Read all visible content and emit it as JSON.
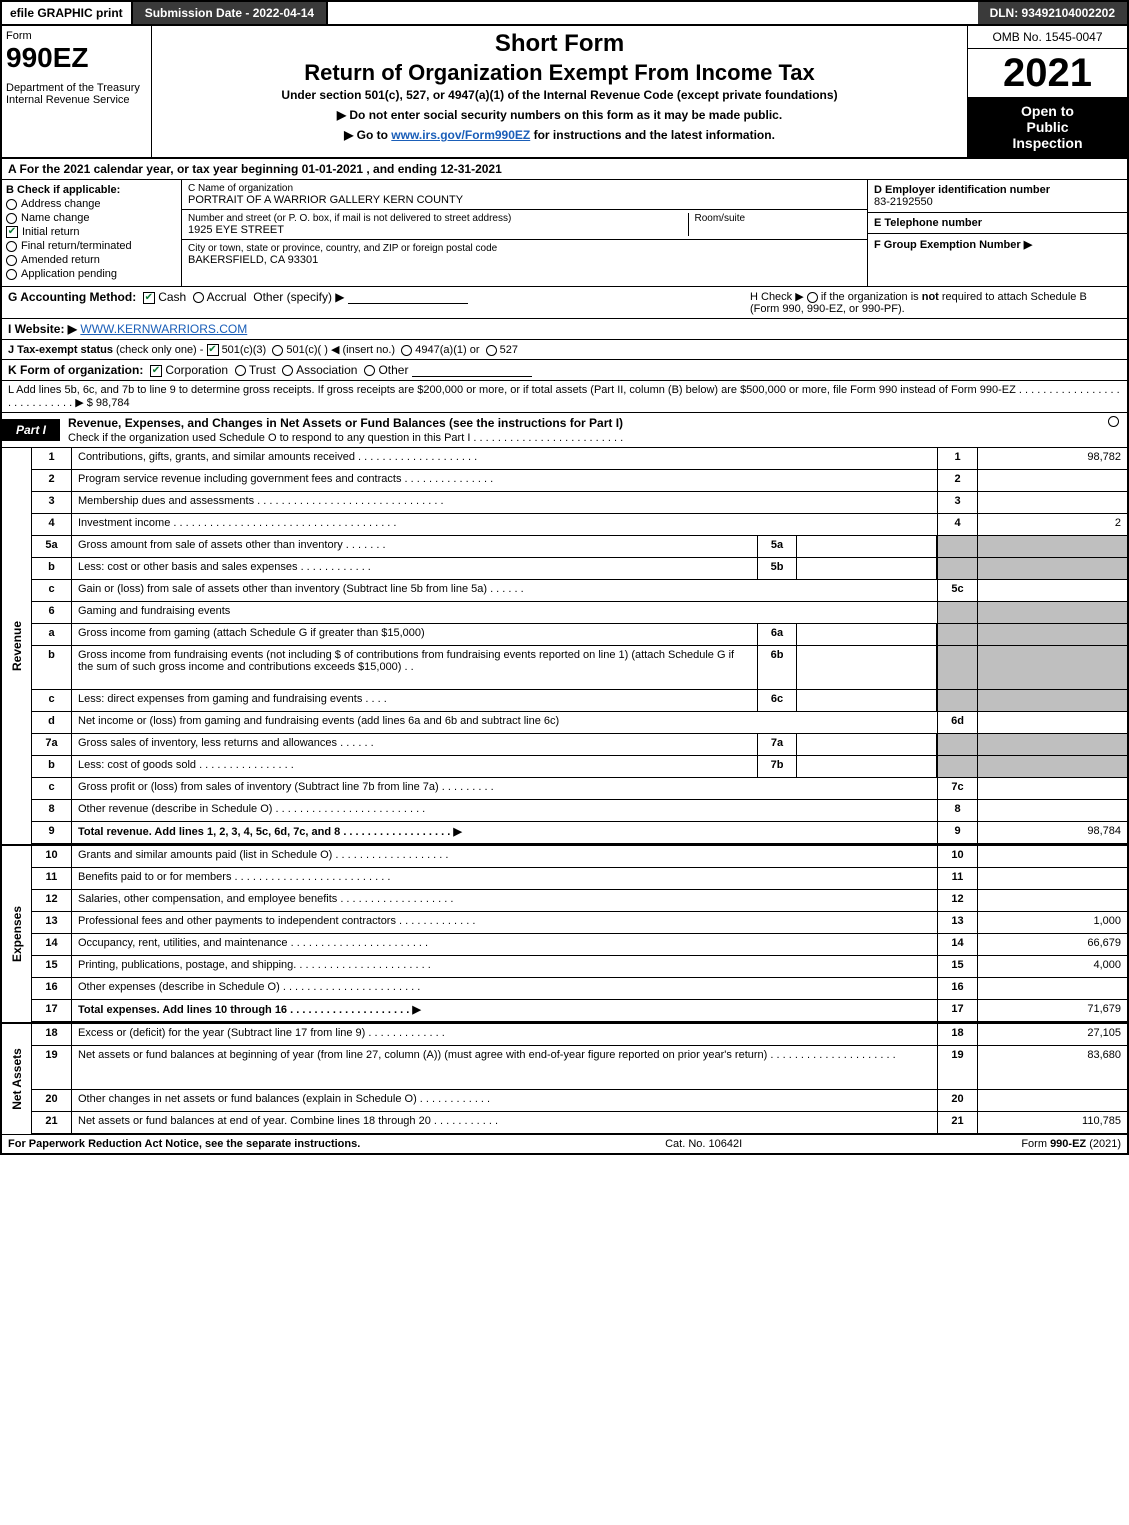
{
  "top": {
    "efile": "efile GRAPHIC print",
    "submission": "Submission Date - 2022-04-14",
    "dln": "DLN: 93492104002202"
  },
  "header": {
    "form_word": "Form",
    "form_no": "990EZ",
    "dept1": "Department of the Treasury",
    "dept2": "Internal Revenue Service",
    "short": "Short Form",
    "title": "Return of Organization Exempt From Income Tax",
    "subtitle": "Under section 501(c), 527, or 4947(a)(1) of the Internal Revenue Code (except private foundations)",
    "note1": "▶ Do not enter social security numbers on this form as it may be made public.",
    "note2_pre": "▶ Go to ",
    "note2_link": "www.irs.gov/Form990EZ",
    "note2_post": " for instructions and the latest information.",
    "omb": "OMB No. 1545-0047",
    "year": "2021",
    "badge1": "Open to",
    "badge2": "Public",
    "badge3": "Inspection"
  },
  "line_a": "A  For the 2021 calendar year, or tax year beginning 01-01-2021 , and ending 12-31-2021",
  "section_b": {
    "heading": "B  Check if applicable:",
    "items": [
      {
        "label": "Address change",
        "checked": false,
        "shape": "radio"
      },
      {
        "label": "Name change",
        "checked": false,
        "shape": "radio"
      },
      {
        "label": "Initial return",
        "checked": true,
        "shape": "box"
      },
      {
        "label": "Final return/terminated",
        "checked": false,
        "shape": "radio"
      },
      {
        "label": "Amended return",
        "checked": false,
        "shape": "radio"
      },
      {
        "label": "Application pending",
        "checked": false,
        "shape": "radio"
      }
    ]
  },
  "section_c": {
    "name_caption": "C Name of organization",
    "name": "PORTRAIT OF A WARRIOR GALLERY KERN COUNTY",
    "street_caption": "Number and street (or P. O. box, if mail is not delivered to street address)",
    "room_caption": "Room/suite",
    "street": "1925 EYE STREET",
    "city_caption": "City or town, state or province, country, and ZIP or foreign postal code",
    "city": "BAKERSFIELD, CA  93301"
  },
  "section_d": {
    "ein_label": "D Employer identification number",
    "ein": "83-2192550",
    "phone_label": "E Telephone number",
    "group_label": "F Group Exemption Number  ▶"
  },
  "line_g": {
    "label": "G Accounting Method:",
    "cash": "Cash",
    "accrual": "Accrual",
    "other": "Other (specify) ▶"
  },
  "line_h": {
    "text1": "H  Check ▶",
    "text2": "if the organization is ",
    "not": "not",
    "text3": " required to attach Schedule B",
    "text4": "(Form 990, 990-EZ, or 990-PF)."
  },
  "line_i": {
    "label": "I Website: ▶",
    "value": "WWW.KERNWARRIORS.COM"
  },
  "line_j": {
    "label": "J Tax-exempt status",
    "sub": " (check only one) - ",
    "o1": "501(c)(3)",
    "o2": "501(c)(  ) ◀ (insert no.)",
    "o3": "4947(a)(1) or",
    "o4": "527"
  },
  "line_k": {
    "label": "K Form of organization:",
    "o1": "Corporation",
    "o2": "Trust",
    "o3": "Association",
    "o4": "Other"
  },
  "line_l": {
    "text": "L Add lines 5b, 6c, and 7b to line 9 to determine gross receipts. If gross receipts are $200,000 or more, or if total assets (Part II, column (B) below) are $500,000 or more, file Form 990 instead of Form 990-EZ .  .  .  .  .  .  .  .  .  .  .  .  .  .  .  .  .  .  .  .  .  .  .  .  .  .  .  . ▶ $ 98,784"
  },
  "part1": {
    "tab": "Part I",
    "title": "Revenue, Expenses, and Changes in Net Assets or Fund Balances (see the instructions for Part I)",
    "check_line": "Check if the organization used Schedule O to respond to any question in this Part I .  .  .  .  .  .  .  .  .  .  .  .  .  .  .  .  .  .  .  .  .  .  .  .  ."
  },
  "side_labels": {
    "revenue": "Revenue",
    "expenses": "Expenses",
    "netassets": "Net Assets"
  },
  "rows": [
    {
      "sec": "rev",
      "ln": "1",
      "desc": "Contributions, gifts, grants, and similar amounts received .  .  .  .  .  .  .  .  .  .  .  .  .  .  .  .  .  .  .  .",
      "num": "1",
      "val": "98,782"
    },
    {
      "sec": "rev",
      "ln": "2",
      "desc": "Program service revenue including government fees and contracts .  .  .  .  .  .  .  .  .  .  .  .  .  .  .",
      "num": "2",
      "val": ""
    },
    {
      "sec": "rev",
      "ln": "3",
      "desc": "Membership dues and assessments .  .  .  .  .  .  .  .  .  .  .  .  .  .  .  .  .  .  .  .  .  .  .  .  .  .  .  .  .  .  .",
      "num": "3",
      "val": ""
    },
    {
      "sec": "rev",
      "ln": "4",
      "desc": "Investment income .  .  .  .  .  .  .  .  .  .  .  .  .  .  .  .  .  .  .  .  .  .  .  .  .  .  .  .  .  .  .  .  .  .  .  .  .",
      "num": "4",
      "val": "2"
    },
    {
      "sec": "rev",
      "ln": "5a",
      "desc": "Gross amount from sale of assets other than inventory .  .  .  .  .  .  .",
      "mini": "5a",
      "num_shaded": true
    },
    {
      "sec": "rev",
      "ln": "b",
      "desc": "Less: cost or other basis and sales expenses .  .  .  .  .  .  .  .  .  .  .  .",
      "mini": "5b",
      "num_shaded": true
    },
    {
      "sec": "rev",
      "ln": "c",
      "desc": "Gain or (loss) from sale of assets other than inventory (Subtract line 5b from line 5a) .  .  .  .  .  .",
      "num": "5c",
      "val": ""
    },
    {
      "sec": "rev",
      "ln": "6",
      "desc": "Gaming and fundraising events",
      "num_shaded": true
    },
    {
      "sec": "rev",
      "ln": "a",
      "desc": "Gross income from gaming (attach Schedule G if greater than $15,000)",
      "mini": "6a",
      "num_shaded": true
    },
    {
      "sec": "rev",
      "ln": "b",
      "desc": "Gross income from fundraising events (not including $                       of contributions from fundraising events reported on line 1) (attach Schedule G if the sum of such gross income and contributions exceeds $15,000)   .  .",
      "mini": "6b",
      "num_shaded": true,
      "tall": true
    },
    {
      "sec": "rev",
      "ln": "c",
      "desc": "Less: direct expenses from gaming and fundraising events  .  .  .  .",
      "mini": "6c",
      "num_shaded": true
    },
    {
      "sec": "rev",
      "ln": "d",
      "desc": "Net income or (loss) from gaming and fundraising events (add lines 6a and 6b and subtract line 6c)",
      "num": "6d",
      "val": ""
    },
    {
      "sec": "rev",
      "ln": "7a",
      "desc": "Gross sales of inventory, less returns and allowances .  .  .  .  .  .",
      "mini": "7a",
      "num_shaded": true
    },
    {
      "sec": "rev",
      "ln": "b",
      "desc": "Less: cost of goods sold       .  .  .  .  .  .  .  .  .  .  .  .  .  .  .  .",
      "mini": "7b",
      "num_shaded": true
    },
    {
      "sec": "rev",
      "ln": "c",
      "desc": "Gross profit or (loss) from sales of inventory (Subtract line 7b from line 7a) .  .  .  .  .  .  .  .  .",
      "num": "7c",
      "val": ""
    },
    {
      "sec": "rev",
      "ln": "8",
      "desc": "Other revenue (describe in Schedule O) .  .  .  .  .  .  .  .  .  .  .  .  .  .  .  .  .  .  .  .  .  .  .  .  .",
      "num": "8",
      "val": ""
    },
    {
      "sec": "rev",
      "ln": "9",
      "desc": "Total revenue. Add lines 1, 2, 3, 4, 5c, 6d, 7c, and 8  .  .  .  .  .  .  .  .  .  .  .  .  .  .  .  .  .  . ▶",
      "num": "9",
      "val": "98,784",
      "bold": true
    },
    {
      "sec": "exp",
      "ln": "10",
      "desc": "Grants and similar amounts paid (list in Schedule O) .  .  .  .  .  .  .  .  .  .  .  .  .  .  .  .  .  .  .",
      "num": "10",
      "val": ""
    },
    {
      "sec": "exp",
      "ln": "11",
      "desc": "Benefits paid to or for members     .  .  .  .  .  .  .  .  .  .  .  .  .  .  .  .  .  .  .  .  .  .  .  .  .  .",
      "num": "11",
      "val": ""
    },
    {
      "sec": "exp",
      "ln": "12",
      "desc": "Salaries, other compensation, and employee benefits .  .  .  .  .  .  .  .  .  .  .  .  .  .  .  .  .  .  .",
      "num": "12",
      "val": ""
    },
    {
      "sec": "exp",
      "ln": "13",
      "desc": "Professional fees and other payments to independent contractors .  .  .  .  .  .  .  .  .  .  .  .  .",
      "num": "13",
      "val": "1,000"
    },
    {
      "sec": "exp",
      "ln": "14",
      "desc": "Occupancy, rent, utilities, and maintenance .  .  .  .  .  .  .  .  .  .  .  .  .  .  .  .  .  .  .  .  .  .  .",
      "num": "14",
      "val": "66,679"
    },
    {
      "sec": "exp",
      "ln": "15",
      "desc": "Printing, publications, postage, and shipping. .  .  .  .  .  .  .  .  .  .  .  .  .  .  .  .  .  .  .  .  .  .",
      "num": "15",
      "val": "4,000"
    },
    {
      "sec": "exp",
      "ln": "16",
      "desc": "Other expenses (describe in Schedule O)    .  .  .  .  .  .  .  .  .  .  .  .  .  .  .  .  .  .  .  .  .  .  .",
      "num": "16",
      "val": ""
    },
    {
      "sec": "exp",
      "ln": "17",
      "desc": "Total expenses. Add lines 10 through 16     .  .  .  .  .  .  .  .  .  .  .  .  .  .  .  .  .  .  .  . ▶",
      "num": "17",
      "val": "71,679",
      "bold": true
    },
    {
      "sec": "net",
      "ln": "18",
      "desc": "Excess or (deficit) for the year (Subtract line 17 from line 9)       .  .  .  .  .  .  .  .  .  .  .  .  .",
      "num": "18",
      "val": "27,105"
    },
    {
      "sec": "net",
      "ln": "19",
      "desc": "Net assets or fund balances at beginning of year (from line 27, column (A)) (must agree with end-of-year figure reported on prior year's return) .  .  .  .  .  .  .  .  .  .  .  .  .  .  .  .  .  .  .  .  .",
      "num": "19",
      "val": "83,680",
      "tall": true
    },
    {
      "sec": "net",
      "ln": "20",
      "desc": "Other changes in net assets or fund balances (explain in Schedule O) .  .  .  .  .  .  .  .  .  .  .  .",
      "num": "20",
      "val": ""
    },
    {
      "sec": "net",
      "ln": "21",
      "desc": "Net assets or fund balances at end of year. Combine lines 18 through 20 .  .  .  .  .  .  .  .  .  .  .",
      "num": "21",
      "val": "110,785"
    }
  ],
  "footer": {
    "left": "For Paperwork Reduction Act Notice, see the separate instructions.",
    "center": "Cat. No. 10642I",
    "right_pre": "Form ",
    "right_bold": "990-EZ",
    "right_post": " (2021)"
  },
  "colors": {
    "dark_header": "#3a3a3a",
    "shaded_cell": "#bfbfbf",
    "check_green": "#0a7a33",
    "link_blue": "#1a5eb8"
  }
}
